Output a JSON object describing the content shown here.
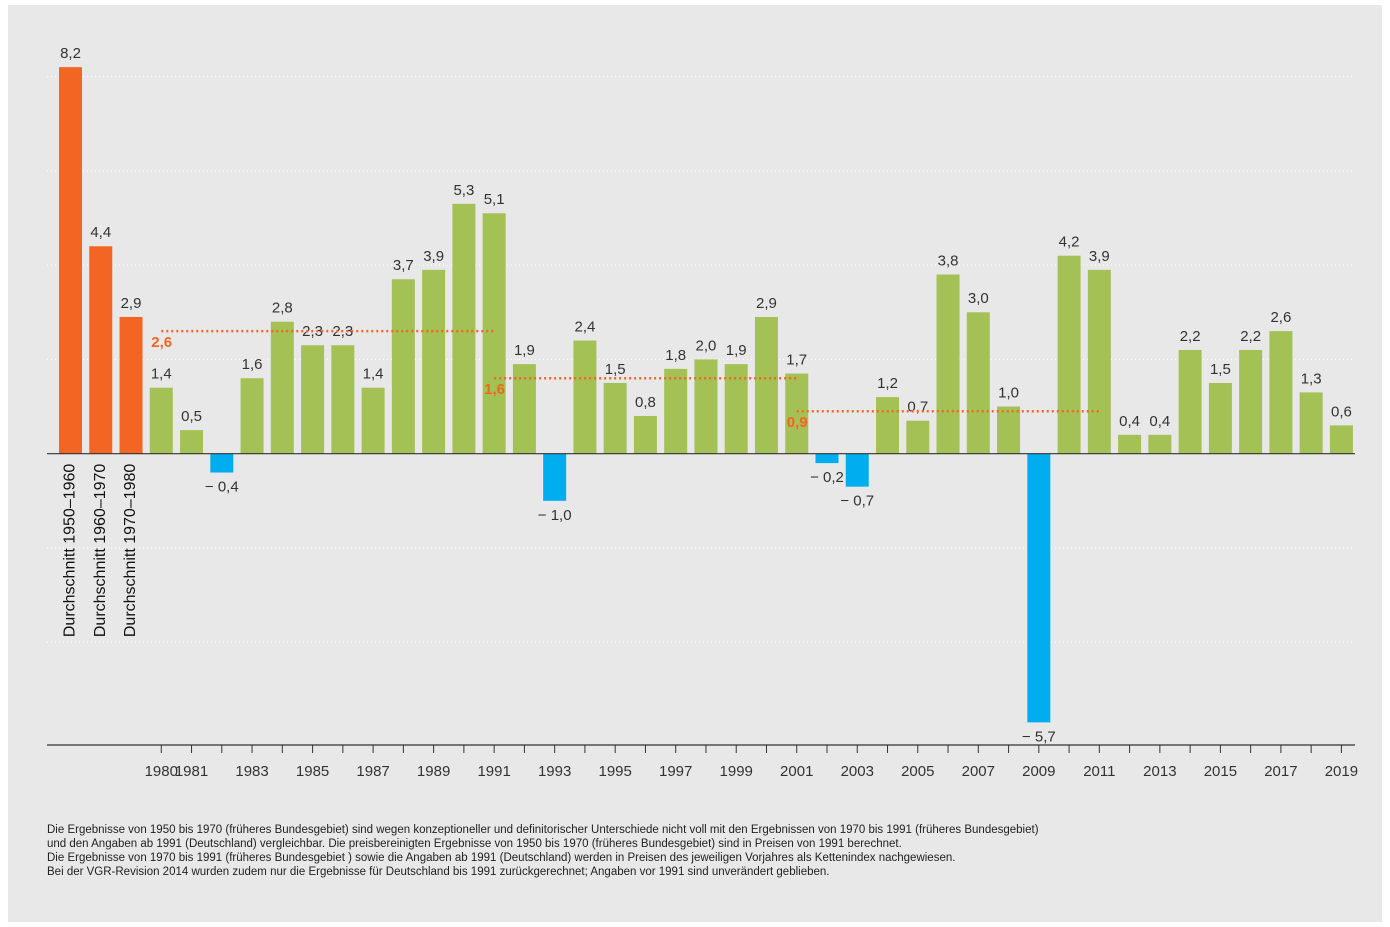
{
  "chart_data": {
    "type": "bar",
    "categories": [
      "Durchschnitt 1950–1960",
      "Durchschnitt 1960–1970",
      "Durchschnitt 1970–1980",
      "1980",
      "1981",
      null,
      "1983",
      null,
      "1985",
      null,
      "1987",
      null,
      "1989",
      null,
      "1991",
      null,
      "1993",
      null,
      "1995",
      null,
      "1997",
      null,
      "1999",
      null,
      "2001",
      null,
      "2003",
      null,
      "2005",
      null,
      "2007",
      null,
      "2009",
      null,
      "2011",
      null,
      "2013",
      null,
      "2015",
      null,
      "2017",
      null,
      "2019"
    ],
    "values": [
      8.2,
      4.4,
      2.9,
      1.4,
      0.5,
      -0.4,
      1.6,
      2.8,
      2.3,
      2.3,
      1.4,
      3.7,
      3.9,
      5.3,
      5.1,
      1.9,
      -1.0,
      2.4,
      1.5,
      0.8,
      1.8,
      2.0,
      1.9,
      2.9,
      1.7,
      -0.2,
      -0.7,
      1.2,
      0.7,
      3.8,
      3.0,
      1.0,
      -5.7,
      4.2,
      3.9,
      0.4,
      0.4,
      2.2,
      1.5,
      2.2,
      2.6,
      1.3,
      0.6
    ],
    "value_labels": [
      "8,2",
      "4,4",
      "2,9",
      "1,4",
      "0,5",
      "− 0,4",
      "1,6",
      "2,8",
      "2,3",
      "2,3",
      "1,4",
      "3,7",
      "3,9",
      "5,3",
      "5,1",
      "1,9",
      "− 1,0",
      "2,4",
      "1,5",
      "0,8",
      "1,8",
      "2,0",
      "1,9",
      "2,9",
      "1,7",
      "− 0,2",
      "− 0,7",
      "1,2",
      "0,7",
      "3,8",
      "3,0",
      "1,0",
      "− 5,7",
      "4,2",
      "3,9",
      "0,4",
      "0,4",
      "2,2",
      "1,5",
      "2,2",
      "2,6",
      "1,3",
      "0,6"
    ],
    "average_color": "#f26522",
    "positive_color": "#a4c155",
    "negative_color": "#00aeef",
    "average_count": 3,
    "ylim": [
      -6.18,
      9.2
    ],
    "gridlines": [
      -4,
      -2,
      2,
      4,
      6,
      8
    ],
    "reference_lines": [
      {
        "value": 2.6,
        "label": "2,6",
        "from": "1980",
        "to": "1991"
      },
      {
        "value": 1.6,
        "label": "1,6",
        "from": "1991",
        "to": "2001"
      },
      {
        "value": 0.9,
        "label": "0,9",
        "from": "2001",
        "to": "2011"
      }
    ],
    "notes": [
      "Die Ergebnisse von 1950 bis 1970 (früheres Bundesgebiet) sind wegen konzeptioneller und definitorischer Unterschiede nicht voll mit den Ergebnissen von 1970 bis 1991 (früheres Bundesgebiet)",
      "und den Angaben ab 1991 (Deutschland) vergleichbar. Die preisbereinigten Ergebnisse von 1950 bis 1970 (früheres Bundesgebiet) sind in Preisen von 1991 berechnet.",
      "Die Ergebnisse von 1970 bis 1991 (früheres Bundesgebiet ) sowie die Angaben ab 1991 (Deutschland) werden in Preisen des jeweiligen Vorjahres als Kettenindex nachgewiesen.",
      "Bei der VGR-Revision 2014 wurden zudem nur die Ergebnisse für Deutschland bis 1991 zurückgerechnet; Angaben vor 1991 sind unverändert geblieben."
    ]
  }
}
